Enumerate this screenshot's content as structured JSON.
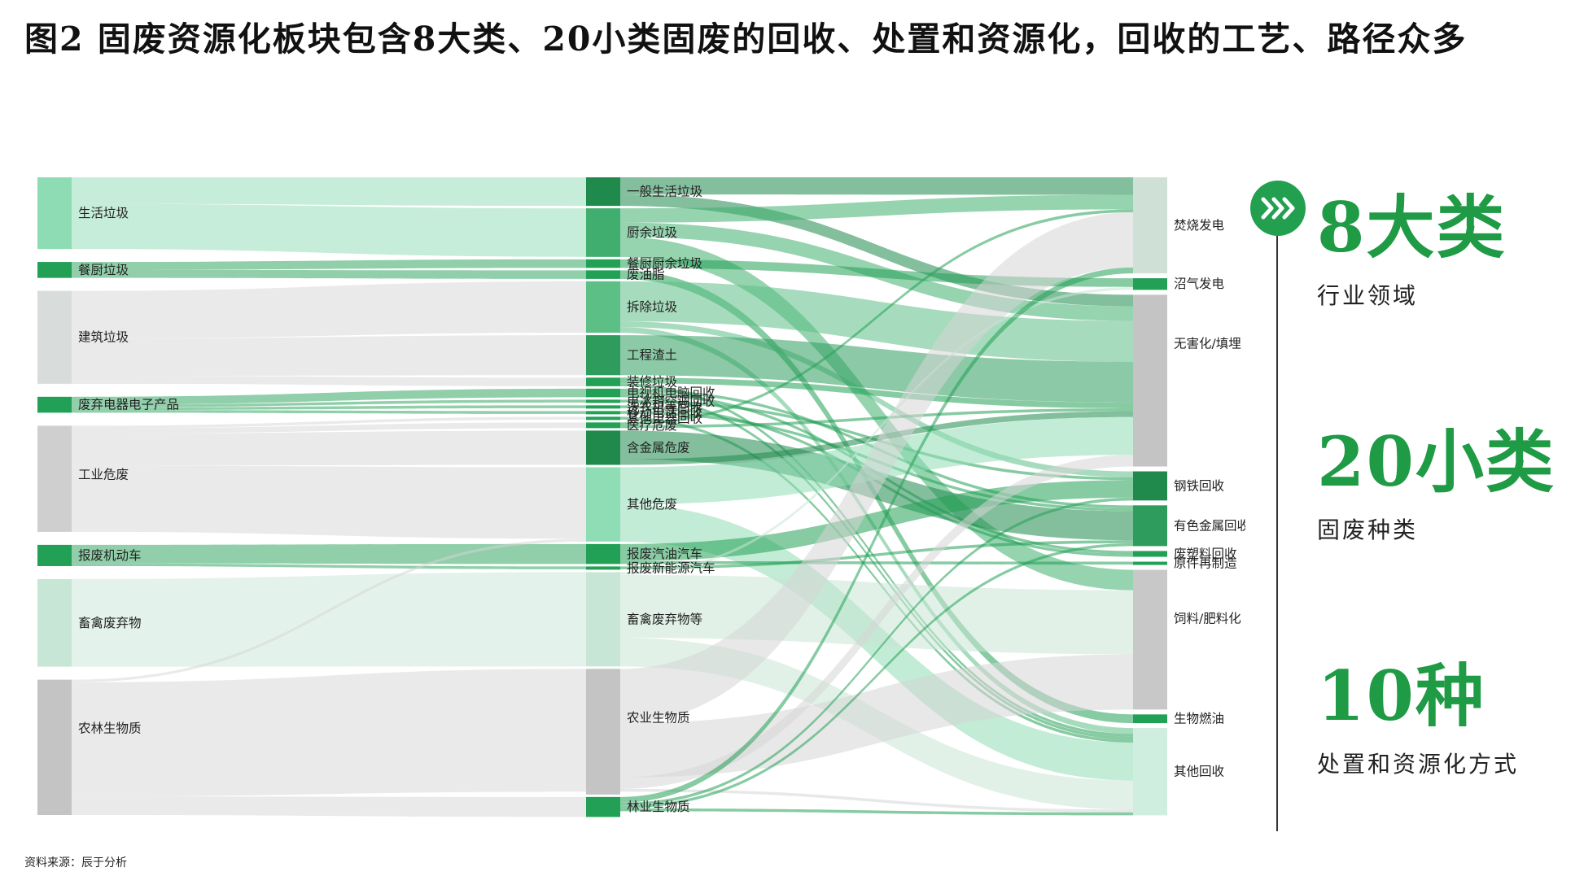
{
  "title": "图2  固废资源化板块包含8大类、20小类固废的回收、处置和资源化，回收的工艺、路径众多",
  "source": "资料来源：辰于分析",
  "stats": [
    {
      "value": "8大类",
      "label": "行业领域"
    },
    {
      "value": "20小类",
      "label": "固废种类"
    },
    {
      "value": "10种",
      "label": "处置和资源化方式"
    }
  ],
  "colors": {
    "accent": "#1f9a45",
    "green_light": "#a8e2c0",
    "green_mid": "#3fb56f",
    "green_dark": "#1f8a4c",
    "grey": "#c8c8c8"
  },
  "chart_data": {
    "type": "sankey",
    "nodes": {
      "categories": [
        {
          "name": "生活垃圾",
          "value": 27,
          "color": "#8edcb3"
        },
        {
          "name": "餐厨垃圾",
          "value": 6,
          "color": "#22a055"
        },
        {
          "name": "建筑垃圾",
          "value": 35,
          "color": "#d8dcdb"
        },
        {
          "name": "废弃电器电子产品",
          "value": 6,
          "color": "#22a055"
        },
        {
          "name": "工业危废",
          "value": 40,
          "color": "#cfcfcf"
        },
        {
          "name": "报废机动车",
          "value": 8,
          "color": "#22a055"
        },
        {
          "name": "畜禽废弃物",
          "value": 33,
          "color": "#c8e6d6"
        },
        {
          "name": "农林生物质",
          "value": 51,
          "color": "#c4c4c4"
        }
      ],
      "subtypes": [
        {
          "name": "一般生活垃圾",
          "value": 10,
          "color": "#1f8a4c"
        },
        {
          "name": "厨余垃圾",
          "value": 17,
          "color": "#3fae6e"
        },
        {
          "name": "餐厨厨余垃圾",
          "value": 3,
          "color": "#22a055"
        },
        {
          "name": "废油脂",
          "value": 3,
          "color": "#22a055"
        },
        {
          "name": "拆除垃圾",
          "value": 18,
          "color": "#5cbf86"
        },
        {
          "name": "工程渣土",
          "value": 14,
          "color": "#2e9c5c"
        },
        {
          "name": "装修垃圾",
          "value": 3,
          "color": "#22a055"
        },
        {
          "name": "电视机电脑回收",
          "value": 3,
          "color": "#22a055"
        },
        {
          "name": "电冰箱空调回收",
          "value": 1,
          "color": "#22a055"
        },
        {
          "name": "洗衣机等回收",
          "value": 1,
          "color": "#22a055"
        },
        {
          "name": "移动电话回收",
          "value": 1,
          "color": "#22a055"
        },
        {
          "name": "其他电器回收",
          "value": 1,
          "color": "#22a055"
        },
        {
          "name": "医疗危废",
          "value": 2,
          "color": "#22a055"
        },
        {
          "name": "含金属危废",
          "value": 12,
          "color": "#1f8a4c"
        },
        {
          "name": "其他危废",
          "value": 26,
          "color": "#8fddb4"
        },
        {
          "name": "报废汽油汽车",
          "value": 7,
          "color": "#22a055"
        },
        {
          "name": "报废新能源汽车",
          "value": 1,
          "color": "#22a055"
        },
        {
          "name": "畜禽废弃物等",
          "value": 33,
          "color": "#c8e6d6"
        },
        {
          "name": "农业生物质",
          "value": 44,
          "color": "#c4c4c4"
        },
        {
          "name": "林业生物质",
          "value": 7,
          "color": "#22a055"
        }
      ],
      "methods": [
        {
          "name": "焚烧发电",
          "value": 33,
          "color": "#cfe0d6"
        },
        {
          "name": "沼气发电",
          "value": 4,
          "color": "#22a055"
        },
        {
          "name": "无害化/填埋",
          "value": 59,
          "color": "#c4c4c4"
        },
        {
          "name": "钢铁回收",
          "value": 10,
          "color": "#1f8a4c"
        },
        {
          "name": "有色金属回收",
          "value": 14,
          "color": "#2e9c5c"
        },
        {
          "name": "废塑料回收",
          "value": 2,
          "color": "#22a055"
        },
        {
          "name": "原件再制造",
          "value": 1,
          "color": "#22a055"
        },
        {
          "name": "饲料/肥料化",
          "value": 48,
          "color": "#c8c8c8"
        },
        {
          "name": "生物燃油",
          "value": 3,
          "color": "#22a055"
        },
        {
          "name": "其他回收",
          "value": 30,
          "color": "#cfeee0"
        }
      ]
    },
    "links": [
      {
        "source": "生活垃圾",
        "target": "一般生活垃圾",
        "value": 10
      },
      {
        "source": "生活垃圾",
        "target": "厨余垃圾",
        "value": 17
      },
      {
        "source": "餐厨垃圾",
        "target": "餐厨厨余垃圾",
        "value": 3
      },
      {
        "source": "餐厨垃圾",
        "target": "废油脂",
        "value": 3
      },
      {
        "source": "建筑垃圾",
        "target": "拆除垃圾",
        "value": 18
      },
      {
        "source": "建筑垃圾",
        "target": "工程渣土",
        "value": 14
      },
      {
        "source": "建筑垃圾",
        "target": "装修垃圾",
        "value": 3
      },
      {
        "source": "废弃电器电子产品",
        "target": "电视机电脑回收",
        "value": 3
      },
      {
        "source": "废弃电器电子产品",
        "target": "电冰箱空调回收",
        "value": 1
      },
      {
        "source": "废弃电器电子产品",
        "target": "洗衣机等回收",
        "value": 1
      },
      {
        "source": "废弃电器电子产品",
        "target": "移动电话回收",
        "value": 1
      },
      {
        "source": "工业危废",
        "target": "其他电器回收",
        "value": 1
      },
      {
        "source": "工业危废",
        "target": "医疗危废",
        "value": 2
      },
      {
        "source": "工业危废",
        "target": "含金属危废",
        "value": 12
      },
      {
        "source": "工业危废",
        "target": "其他危废",
        "value": 25
      },
      {
        "source": "报废机动车",
        "target": "报废汽油汽车",
        "value": 7
      },
      {
        "source": "报废机动车",
        "target": "报废新能源汽车",
        "value": 1
      },
      {
        "source": "畜禽废弃物",
        "target": "畜禽废弃物等",
        "value": 33
      },
      {
        "source": "农林生物质",
        "target": "其他危废",
        "value": 1
      },
      {
        "source": "农林生物质",
        "target": "农业生物质",
        "value": 43
      },
      {
        "source": "农林生物质",
        "target": "林业生物质",
        "value": 7
      },
      {
        "source": "一般生活垃圾",
        "target": "焚烧发电",
        "value": 6
      },
      {
        "source": "一般生活垃圾",
        "target": "无害化/填埋",
        "value": 4
      },
      {
        "source": "厨余垃圾",
        "target": "焚烧发电",
        "value": 5
      },
      {
        "source": "厨余垃圾",
        "target": "无害化/填埋",
        "value": 5
      },
      {
        "source": "厨余垃圾",
        "target": "饲料/肥料化",
        "value": 7
      },
      {
        "source": "餐厨厨余垃圾",
        "target": "沼气发电",
        "value": 3
      },
      {
        "source": "废油脂",
        "target": "生物燃油",
        "value": 3
      },
      {
        "source": "拆除垃圾",
        "target": "无害化/填埋",
        "value": 14
      },
      {
        "source": "拆除垃圾",
        "target": "钢铁回收",
        "value": 2
      },
      {
        "source": "拆除垃圾",
        "target": "其他回收",
        "value": 2
      },
      {
        "source": "工程渣土",
        "target": "无害化/填埋",
        "value": 14
      },
      {
        "source": "装修垃圾",
        "target": "无害化/填埋",
        "value": 2
      },
      {
        "source": "装修垃圾",
        "target": "其他回收",
        "value": 1
      },
      {
        "source": "电视机电脑回收",
        "target": "有色金属回收",
        "value": 1
      },
      {
        "source": "电视机电脑回收",
        "target": "废塑料回收",
        "value": 1
      },
      {
        "source": "电视机电脑回收",
        "target": "其他回收",
        "value": 1
      },
      {
        "source": "电冰箱空调回收",
        "target": "钢铁回收",
        "value": 1
      },
      {
        "source": "洗衣机等回收",
        "target": "废塑料回收",
        "value": 1
      },
      {
        "source": "移动电话回收",
        "target": "有色金属回收",
        "value": 1
      },
      {
        "source": "其他电器回收",
        "target": "其他回收",
        "value": 1
      },
      {
        "source": "医疗危废",
        "target": "焚烧发电",
        "value": 1
      },
      {
        "source": "医疗危废",
        "target": "无害化/填埋",
        "value": 1
      },
      {
        "source": "含金属危废",
        "target": "有色金属回收",
        "value": 10
      },
      {
        "source": "含金属危废",
        "target": "无害化/填埋",
        "value": 2
      },
      {
        "source": "其他危废",
        "target": "无害化/填埋",
        "value": 13
      },
      {
        "source": "其他危废",
        "target": "其他回收",
        "value": 13
      },
      {
        "source": "报废汽油汽车",
        "target": "钢铁回收",
        "value": 6
      },
      {
        "source": "报废汽油汽车",
        "target": "原件再制造",
        "value": 1
      },
      {
        "source": "报废新能源汽车",
        "target": "有色金属回收",
        "value": 1
      },
      {
        "source": "畜禽废弃物等",
        "target": "沼气发电",
        "value": 1
      },
      {
        "source": "畜禽废弃物等",
        "target": "饲料/肥料化",
        "value": 22
      },
      {
        "source": "畜禽废弃物等",
        "target": "其他回收",
        "value": 10
      },
      {
        "source": "农业生物质",
        "target": "焚烧发电",
        "value": 19
      },
      {
        "source": "农业生物质",
        "target": "饲料/肥料化",
        "value": 19
      },
      {
        "source": "农业生物质",
        "target": "无害化/填埋",
        "value": 4
      },
      {
        "source": "农业生物质",
        "target": "其他回收",
        "value": 1
      },
      {
        "source": "林业生物质",
        "target": "焚烧发电",
        "value": 2
      },
      {
        "source": "林业生物质",
        "target": "无害化/填埋",
        "value": 0
      },
      {
        "source": "林业生物质",
        "target": "钢铁回收",
        "value": 1
      },
      {
        "source": "林业生物质",
        "target": "有色金属回收",
        "value": 1
      },
      {
        "source": "林业生物质",
        "target": "其他回收",
        "value": 1
      }
    ]
  }
}
